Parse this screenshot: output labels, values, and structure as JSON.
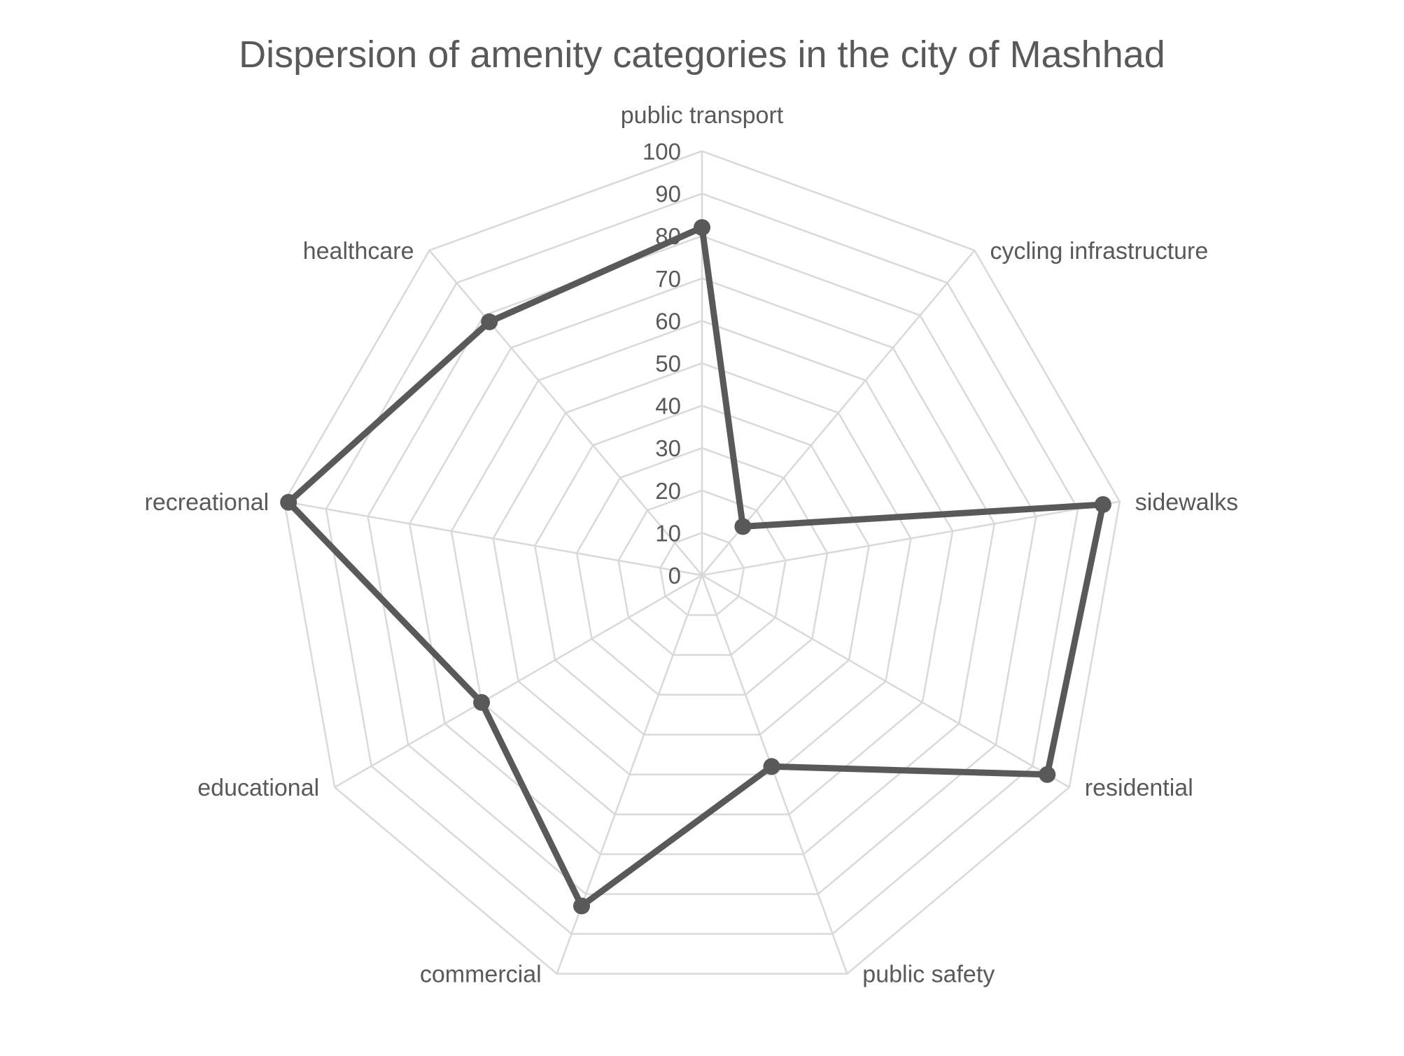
{
  "chart_data": {
    "type": "radar",
    "title": "Dispersion of amenity  categories in the city of Mashhad",
    "categories": [
      "public transport",
      "cycling infrastructure",
      "sidewalks",
      "residential",
      "public safety",
      "commercial",
      "educational",
      "recreational",
      "healthcare"
    ],
    "series": [
      {
        "values": [
          82,
          15,
          96,
          94,
          48,
          83,
          60,
          99,
          78
        ]
      }
    ],
    "rlim": [
      0,
      100
    ],
    "ticks": [
      0,
      10,
      20,
      30,
      40,
      50,
      60,
      70,
      80,
      90,
      100
    ],
    "grid": true,
    "legend": "none",
    "colors": {
      "series": "#595959",
      "grid": "#d9d9d9",
      "text": "#595959"
    }
  }
}
